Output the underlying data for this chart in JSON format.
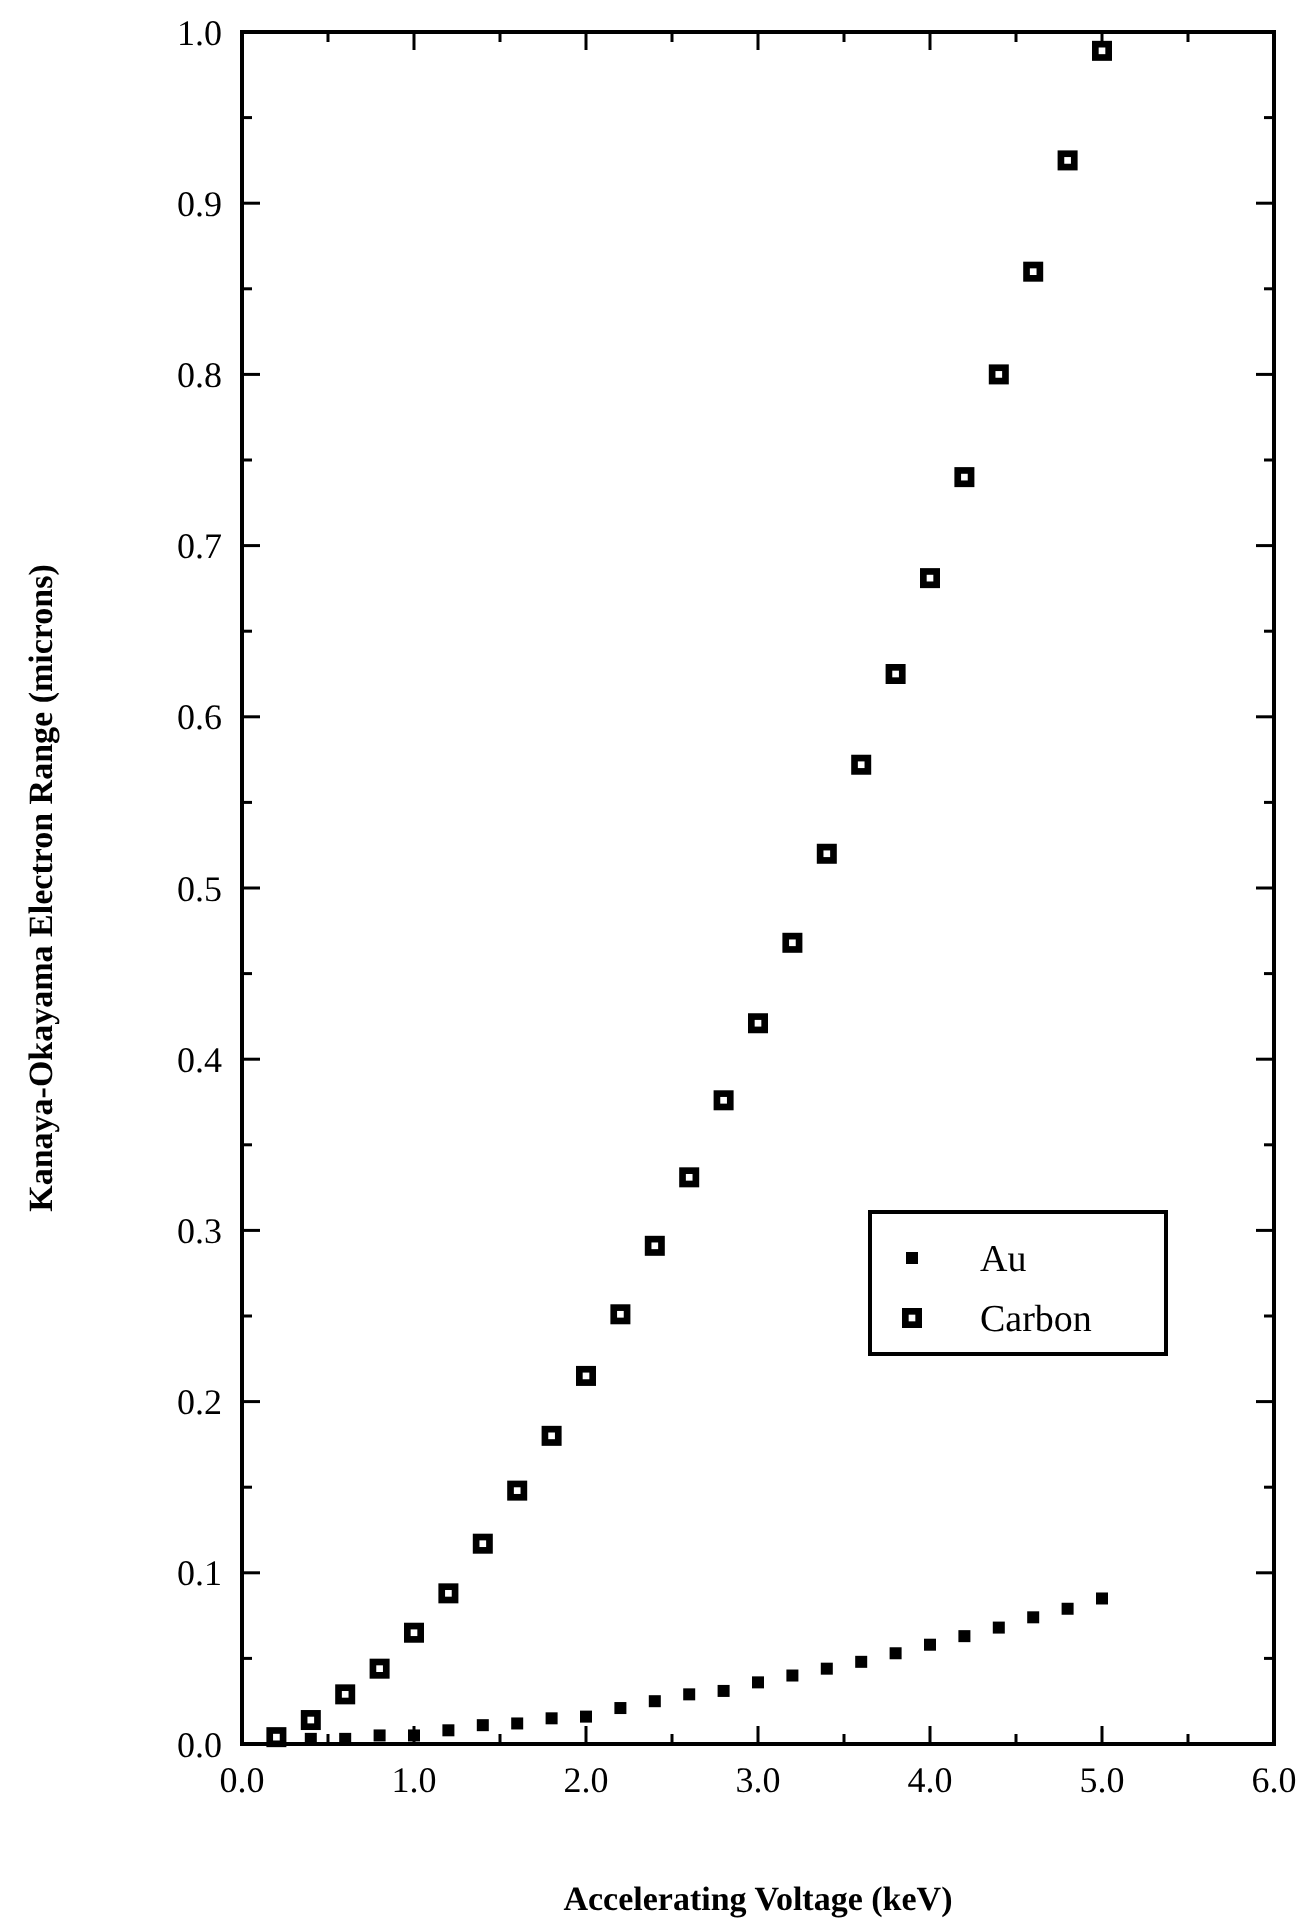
{
  "chart_data": {
    "type": "scatter",
    "xlabel": "Accelerating Voltage (keV)",
    "ylabel": "Kanaya-Okayama Electron Range (microns)",
    "xlim": [
      0,
      6
    ],
    "ylim": [
      0,
      1
    ],
    "xticks": [
      {
        "value": 0,
        "label": "0.0"
      },
      {
        "value": 0.5,
        "label": null
      },
      {
        "value": 1,
        "label": "1.0"
      },
      {
        "value": 1.5,
        "label": null
      },
      {
        "value": 2,
        "label": "2.0"
      },
      {
        "value": 2.5,
        "label": null
      },
      {
        "value": 3,
        "label": "3.0"
      },
      {
        "value": 3.5,
        "label": null
      },
      {
        "value": 4,
        "label": "4.0"
      },
      {
        "value": 4.5,
        "label": null
      },
      {
        "value": 5,
        "label": "5.0"
      },
      {
        "value": 5.5,
        "label": null
      },
      {
        "value": 6,
        "label": "6.0"
      }
    ],
    "yticks": [
      {
        "value": 0,
        "label": "0.0"
      },
      {
        "value": 0.05,
        "label": null
      },
      {
        "value": 0.1,
        "label": "0.1"
      },
      {
        "value": 0.15,
        "label": null
      },
      {
        "value": 0.2,
        "label": "0.2"
      },
      {
        "value": 0.25,
        "label": null
      },
      {
        "value": 0.3,
        "label": "0.3"
      },
      {
        "value": 0.35,
        "label": null
      },
      {
        "value": 0.4,
        "label": "0.4"
      },
      {
        "value": 0.45,
        "label": null
      },
      {
        "value": 0.5,
        "label": "0.5"
      },
      {
        "value": 0.55,
        "label": null
      },
      {
        "value": 0.6,
        "label": "0.6"
      },
      {
        "value": 0.65,
        "label": null
      },
      {
        "value": 0.7,
        "label": "0.7"
      },
      {
        "value": 0.75,
        "label": null
      },
      {
        "value": 0.8,
        "label": "0.8"
      },
      {
        "value": 0.85,
        "label": null
      },
      {
        "value": 0.9,
        "label": "0.9"
      },
      {
        "value": 0.95,
        "label": null
      },
      {
        "value": 1,
        "label": "1.0"
      }
    ],
    "x": [
      0.2,
      0.4,
      0.6,
      0.8,
      1.0,
      1.2,
      1.4,
      1.6,
      1.8,
      2.0,
      2.2,
      2.4,
      2.6,
      2.8,
      3.0,
      3.2,
      3.4,
      3.6,
      3.8,
      4.0,
      4.2,
      4.4,
      4.6,
      4.8,
      5.0
    ],
    "grid": false,
    "legend": "right",
    "marker": "square",
    "series": [
      {
        "name": "Au",
        "color": "#000000",
        "values": [
          null,
          0.003,
          0.003,
          0.005,
          0.005,
          0.008,
          0.011,
          0.012,
          0.015,
          0.016,
          0.021,
          0.025,
          0.029,
          0.031,
          0.036,
          0.04,
          0.044,
          0.048,
          0.053,
          0.058,
          0.063,
          0.068,
          0.074,
          0.079,
          0.085
        ]
      },
      {
        "name": "Carbon",
        "color": "#000000",
        "values": [
          0.004,
          0.014,
          0.029,
          0.044,
          0.065,
          0.088,
          0.117,
          0.148,
          0.18,
          0.215,
          0.251,
          0.291,
          0.331,
          0.376,
          0.421,
          0.468,
          0.52,
          0.572,
          0.625,
          0.681,
          0.74,
          0.8,
          0.86,
          0.925,
          0.989
        ]
      }
    ]
  }
}
